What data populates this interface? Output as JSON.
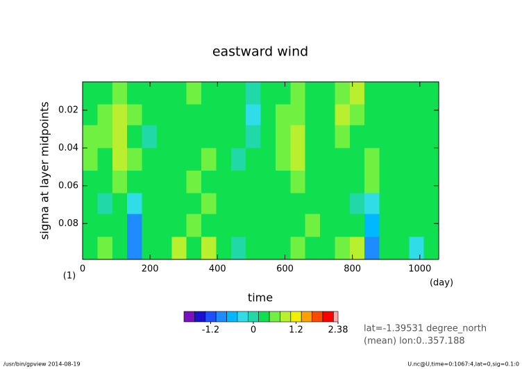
{
  "chart_data": {
    "type": "heatmap",
    "title": "eastward wind",
    "xlabel": "time",
    "ylabel": "sigma at layer midpoints",
    "xunit": "(day)",
    "yunit": "(1)",
    "xlim": [
      0,
      1056
    ],
    "ylim": [
      0.005,
      0.099
    ],
    "y_inverted": true,
    "xticks": [
      0,
      200,
      400,
      600,
      800,
      1000
    ],
    "yticks": [
      0.02,
      0.04,
      0.06,
      0.08
    ],
    "x_bins": [
      0,
      44,
      88,
      132,
      176,
      220,
      264,
      308,
      352,
      396,
      440,
      484,
      528,
      572,
      616,
      660,
      704,
      748,
      792,
      836,
      880,
      924,
      968,
      1012,
      1056
    ],
    "y_bins": [
      0.005,
      0.017,
      0.028,
      0.04,
      0.052,
      0.064,
      0.075,
      0.087,
      0.099
    ],
    "z": [
      [
        0.3,
        0.4,
        0.5,
        0.3,
        0.2,
        0.4,
        0.3,
        0.5,
        0.4,
        0.3,
        0.2,
        0.1,
        0.3,
        0.4,
        0.6,
        0.4,
        0.3,
        0.7,
        0.8,
        0.4,
        0.3,
        0.2,
        0.3,
        0.2
      ],
      [
        0.4,
        0.6,
        1.0,
        0.5,
        0.2,
        0.3,
        0.4,
        0.3,
        0.2,
        0.4,
        0.3,
        -0.3,
        0.2,
        0.5,
        0.7,
        0.3,
        0.4,
        0.9,
        0.5,
        0.3,
        0.2,
        0.3,
        0.4,
        0.3
      ],
      [
        0.5,
        0.7,
        0.9,
        0.4,
        0.1,
        0.2,
        0.3,
        0.2,
        0.3,
        0.2,
        0.3,
        0.1,
        0.3,
        0.6,
        1.0,
        0.3,
        0.2,
        0.5,
        0.4,
        0.2,
        0.3,
        0.4,
        0.2,
        0.3
      ],
      [
        0.7,
        0.3,
        0.8,
        0.5,
        0.2,
        0.3,
        0.2,
        0.4,
        0.5,
        0.3,
        0.1,
        0.2,
        0.4,
        0.5,
        0.9,
        0.4,
        0.3,
        0.4,
        0.3,
        0.5,
        0.2,
        0.3,
        0.4,
        0.2
      ],
      [
        0.4,
        0.2,
        0.5,
        0.3,
        0.4,
        0.2,
        0.3,
        0.6,
        0.4,
        0.3,
        0.2,
        0.3,
        0.2,
        0.4,
        0.5,
        0.3,
        0.2,
        0.3,
        0.4,
        0.6,
        0.3,
        0.2,
        0.3,
        0.4
      ],
      [
        0.3,
        0.1,
        0.3,
        -0.2,
        0.3,
        0.4,
        0.2,
        0.3,
        0.5,
        0.2,
        0.3,
        0.4,
        0.3,
        0.2,
        0.4,
        0.3,
        0.2,
        0.3,
        0.1,
        -0.3,
        0.2,
        0.3,
        0.2,
        0.3
      ],
      [
        0.2,
        0.3,
        0.2,
        -0.9,
        0.2,
        0.3,
        0.4,
        0.5,
        0.3,
        0.2,
        0.3,
        0.2,
        0.4,
        0.3,
        0.2,
        0.5,
        0.3,
        0.2,
        0.3,
        -0.7,
        0.2,
        0.4,
        0.3,
        0.2
      ],
      [
        0.3,
        0.6,
        0.4,
        -1.0,
        0.3,
        0.2,
        0.8,
        0.3,
        0.9,
        0.2,
        0.1,
        0.3,
        0.2,
        0.4,
        0.5,
        0.3,
        0.2,
        0.7,
        1.0,
        -0.8,
        0.3,
        0.2,
        -0.2,
        0.3
      ]
    ],
    "colorbar": {
      "levels": [
        -1.95,
        -1.65,
        -1.35,
        -1.05,
        -0.75,
        -0.45,
        -0.15,
        0.15,
        0.45,
        0.75,
        1.05,
        1.35,
        1.65,
        1.95,
        2.25,
        2.38
      ],
      "colors": [
        "#7a10c0",
        "#1a10d0",
        "#1e50ff",
        "#1e8cff",
        "#00b8ff",
        "#30dce8",
        "#20d8a8",
        "#10e050",
        "#70f040",
        "#b8f030",
        "#f0f000",
        "#ffa000",
        "#ff4800",
        "#ff0000",
        "#ffa8a8"
      ],
      "ticks": [
        -1.2,
        0,
        1.2,
        2.38
      ]
    },
    "annotations": [
      "lat=-1.39531 degree_north",
      "(mean) lon:0..357.188"
    ],
    "footer_left": "/usr/bin/gpview  2014-08-19",
    "footer_right": "U.nc@U,time=0:1067:4,lat=0,sig=0.1:0"
  }
}
